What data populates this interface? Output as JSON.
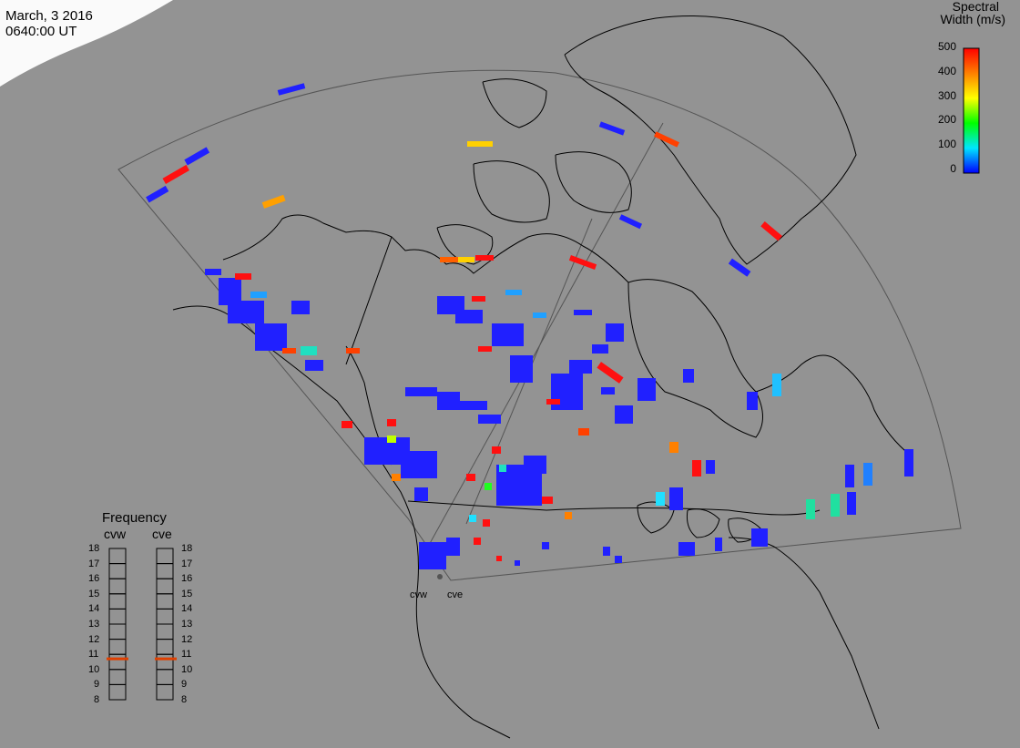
{
  "header": {
    "date": "March, 3 2016",
    "time": "0640:00 UT"
  },
  "colorbar": {
    "title_line1": "Spectral",
    "title_line2": "Width (m/s)",
    "ticks": [
      "500",
      "400",
      "300",
      "200",
      "100",
      "0"
    ],
    "range": [
      0,
      500
    ],
    "colors": [
      "#0000ff",
      "#00e5ff",
      "#00ff00",
      "#ffff00",
      "#ff8000",
      "#ff0000"
    ]
  },
  "frequency_panel": {
    "title": "Frequency",
    "left_label": "cvw",
    "right_label": "cve",
    "scale": [
      "18",
      "17",
      "16",
      "15",
      "14",
      "13",
      "12",
      "11",
      "10",
      "9",
      "8"
    ],
    "cvw_value": 10.7,
    "cve_value": 10.7,
    "marker_color": "#e04000"
  },
  "radars": [
    {
      "label": "cvw"
    },
    {
      "label": "cve"
    }
  ],
  "chart_data": {
    "type": "map",
    "title": "",
    "colorbar_range": [
      0,
      500
    ]
  }
}
